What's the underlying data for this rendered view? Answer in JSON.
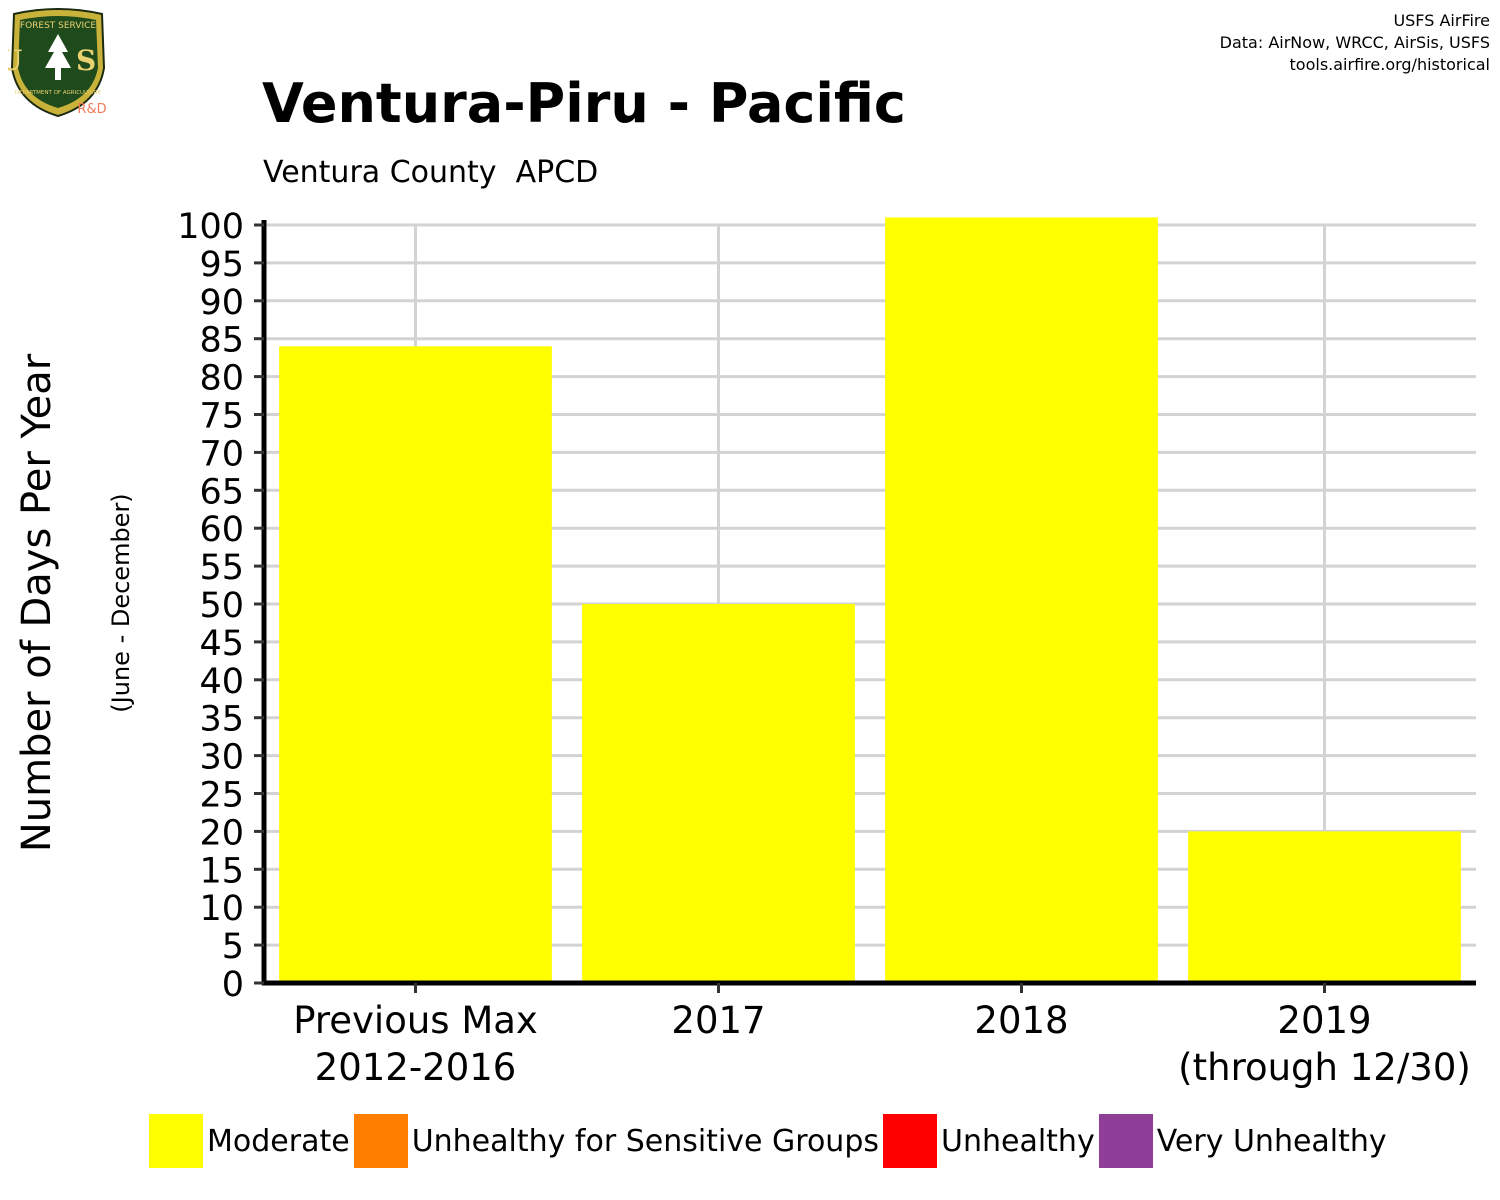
{
  "header": {
    "title": "Ventura-Piru - Pacific",
    "subtitle": "Ventura County  APCD",
    "credits": [
      "USFS AirFire",
      "Data: AirNow, WRCC, AirSis, USFS",
      "tools.airfire.org/historical"
    ]
  },
  "logo": {
    "top_text": "FOREST SERVICE",
    "letters": "U S",
    "bottom_text": "DEPARTMENT OF AGRICULTURE",
    "rd": "R&D"
  },
  "chart_data": {
    "type": "bar",
    "ylabel": "Number of Days Per Year",
    "ylabel_secondary": "(June - December)",
    "categories": [
      [
        "Previous Max",
        "2012-2016"
      ],
      [
        "2017"
      ],
      [
        "2018"
      ],
      [
        "2019",
        "(through 12/30)"
      ]
    ],
    "series": [
      {
        "name": "Moderate",
        "color": "#ffff00",
        "values": [
          84,
          50,
          101,
          20
        ]
      }
    ],
    "ylim": [
      0,
      100
    ],
    "yticks": [
      0,
      5,
      10,
      15,
      20,
      25,
      30,
      35,
      40,
      45,
      50,
      55,
      60,
      65,
      70,
      75,
      80,
      85,
      90,
      95,
      100
    ],
    "grid": true
  },
  "legend": [
    {
      "label": "Moderate",
      "color": "#ffff00"
    },
    {
      "label": "Unhealthy for Sensitive Groups",
      "color": "#ff7e00"
    },
    {
      "label": "Unhealthy",
      "color": "#ff0000"
    },
    {
      "label": "Very Unhealthy",
      "color": "#8f3f97"
    }
  ]
}
